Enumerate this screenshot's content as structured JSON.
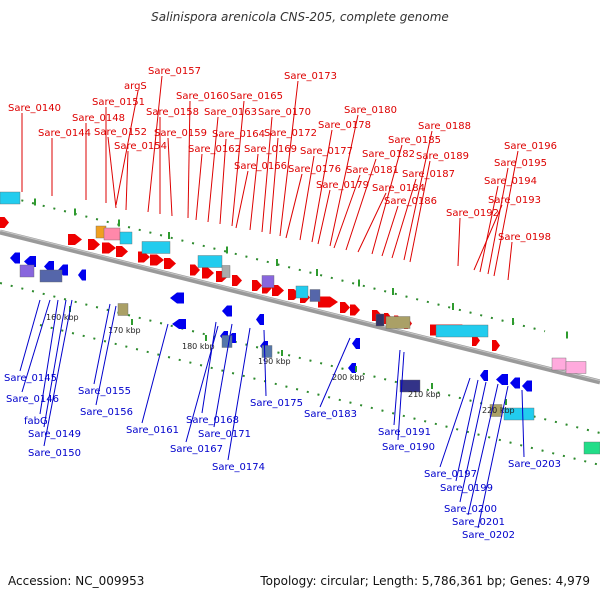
{
  "title": "Salinispora arenicola CNS-205, complete genome",
  "footer": {
    "accession": "Accession: NC_009953",
    "summary": "Topology: circular; Length: 5,786,361 bp; Genes: 4,979"
  },
  "colors": {
    "forward_label": "#dd0000",
    "reverse_label": "#0000cc",
    "backbone": "#808080"
  },
  "ticks": [
    {
      "label": "160 kbp"
    },
    {
      "label": "170 kbp"
    },
    {
      "label": "180 kbp"
    },
    {
      "label": "190 kbp"
    },
    {
      "label": "200 kbp"
    },
    {
      "label": "210 kbp"
    },
    {
      "label": "220 kbp"
    }
  ],
  "forward_genes": [
    "Sare_0140",
    "Sare_0144",
    "Sare_0148",
    "Sare_0151",
    "argS",
    "Sare_0152",
    "Sare_0154",
    "Sare_0157",
    "Sare_0158",
    "Sare_0159",
    "Sare_0160",
    "Sare_0162",
    "Sare_0163",
    "Sare_0164",
    "Sare_0165",
    "Sare_0166",
    "Sare_0169",
    "Sare_0170",
    "Sare_0172",
    "Sare_0173",
    "Sare_0176",
    "Sare_0177",
    "Sare_0178",
    "Sare_0179",
    "Sare_0180",
    "Sare_0181",
    "Sare_0182",
    "Sare_0184",
    "Sare_0185",
    "Sare_0186",
    "Sare_0187",
    "Sare_0188",
    "Sare_0189",
    "Sare_0192",
    "Sare_0193",
    "Sare_0194",
    "Sare_0195",
    "Sare_0196",
    "Sare_0198"
  ],
  "reverse_genes": [
    "Sare_0145",
    "Sare_0146",
    "fabG",
    "Sare_0149",
    "Sare_0150",
    "Sare_0155",
    "Sare_0156",
    "Sare_0161",
    "Sare_0168",
    "Sare_0171",
    "Sare_0167",
    "Sare_0174",
    "Sare_0175",
    "Sare_0183",
    "Sare_0191",
    "Sare_0190",
    "Sare_0197",
    "Sare_0199",
    "Sare_0200",
    "Sare_0201",
    "Sare_0202",
    "Sare_0203"
  ]
}
